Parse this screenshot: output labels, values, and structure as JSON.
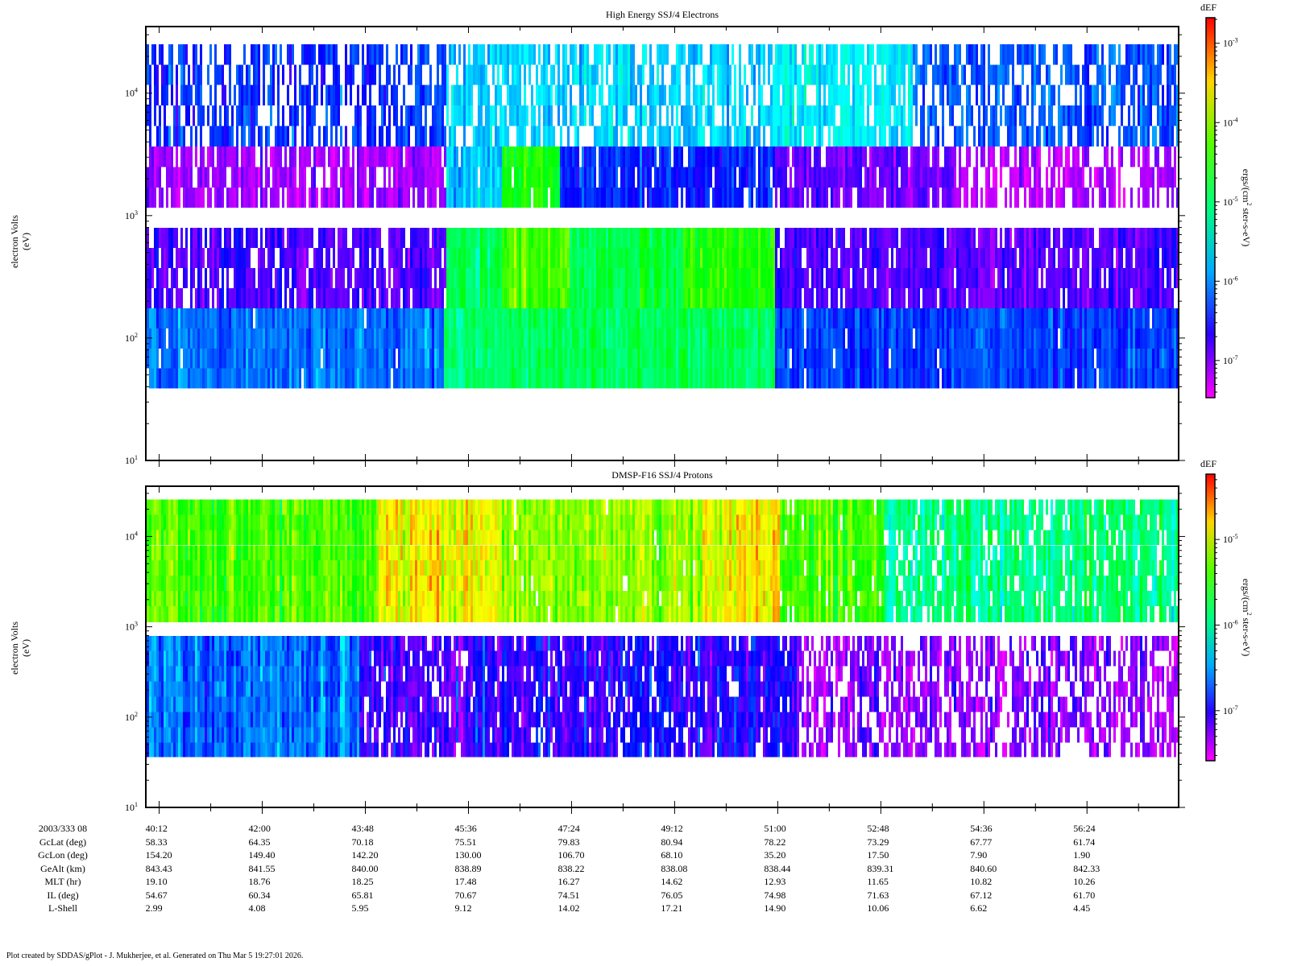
{
  "chart_data": [
    {
      "type": "heatmap",
      "title": "High Energy SSJ/4 Electrons",
      "ylabel": [
        "electron Volts",
        "(eV)"
      ],
      "yscale": "log",
      "ylim": [
        10,
        35000
      ],
      "ytick_labels": [
        {
          "base": "10",
          "exp": "1",
          "value": 10
        },
        {
          "base": "10",
          "exp": "2",
          "value": 100
        },
        {
          "base": "10",
          "exp": "3",
          "value": 1000
        },
        {
          "base": "10",
          "exp": "4",
          "value": 10000
        }
      ],
      "xlim_seconds_of_hour": [
        2398,
        3480
      ],
      "colorbar": {
        "title": "dEF",
        "label_main": "ergs/(cm",
        "label_sup": "2",
        "label_rest": " ster-s-eV)",
        "range": [
          3.4e-08,
          0.0021
        ],
        "scale": "log",
        "tick_labels": [
          {
            "base": "10",
            "exp": "-3",
            "value": -3
          },
          {
            "base": "10",
            "exp": "-4",
            "value": -4
          },
          {
            "base": "10",
            "exp": "-5",
            "value": -5
          },
          {
            "base": "10",
            "exp": "-6",
            "value": -6
          },
          {
            "base": "10",
            "exp": "-7",
            "value": -7
          }
        ]
      },
      "energy_bin_edges_eV": [
        [
          25100,
          17100,
          11640,
          7930,
          5400,
          3670,
          2500,
          1700,
          1160
        ],
        [
          794,
          545,
          373,
          256,
          175,
          120,
          82,
          56.5,
          38.7
        ]
      ],
      "channel_groups": [
        {
          "name": "A",
          "detector": 0,
          "bins": [
            0,
            1,
            2,
            3,
            4
          ],
          "segments_log10_dEF": [
            [
              2398,
              2712,
              -6.3,
              0.4
            ],
            [
              2712,
              3056,
              -5.7,
              0.3
            ],
            [
              3056,
              3200,
              -5.6,
              0.15
            ],
            [
              3200,
              3480,
              -6.2,
              0.35
            ]
          ]
        },
        {
          "name": "B",
          "detector": 0,
          "bins": [
            5,
            6,
            7
          ],
          "segments_log10_dEF": [
            [
              2398,
              2712,
              -7.1,
              0.2
            ],
            [
              2712,
              2770,
              -5.8,
              0.05
            ],
            [
              2770,
              2830,
              -4.6,
              0.05
            ],
            [
              2830,
              3056,
              -6.4,
              0.1
            ],
            [
              3056,
              3240,
              -6.9,
              0.1
            ],
            [
              3240,
              3480,
              -7.2,
              0.3
            ]
          ]
        },
        {
          "name": "C",
          "detector": 1,
          "bins": [
            0,
            1,
            2,
            3
          ],
          "segments_log10_dEF": [
            [
              2398,
              2712,
              -6.8,
              0.15
            ],
            [
              2712,
              2770,
              -4.9,
              0
            ],
            [
              2770,
              2840,
              -4.3,
              0
            ],
            [
              2840,
              2960,
              -4.8,
              0
            ],
            [
              2960,
              3056,
              -4.5,
              0
            ],
            [
              3056,
              3480,
              -6.8,
              0.1
            ]
          ]
        },
        {
          "name": "D",
          "detector": 1,
          "bins": [
            4,
            5,
            6,
            7
          ],
          "segments_log10_dEF": [
            [
              2398,
              2710,
              -6.1,
              0.02
            ],
            [
              2710,
              2770,
              -5.0,
              0
            ],
            [
              2770,
              3056,
              -4.9,
              0
            ],
            [
              3056,
              3480,
              -6.3,
              0.02
            ]
          ]
        }
      ]
    },
    {
      "type": "heatmap",
      "title": "DMSP-F16 SSJ/4 Protons",
      "ylabel": [
        "electron Volts",
        "(eV)"
      ],
      "yscale": "log",
      "ylim": [
        10,
        36000
      ],
      "ytick_labels": [
        {
          "base": "10",
          "exp": "1",
          "value": 10
        },
        {
          "base": "10",
          "exp": "2",
          "value": 100
        },
        {
          "base": "10",
          "exp": "3",
          "value": 1000
        },
        {
          "base": "10",
          "exp": "4",
          "value": 10000
        }
      ],
      "xlim_seconds_of_hour": [
        2398,
        3480
      ],
      "colorbar": {
        "title": "dEF",
        "label_main": "ergs/(cm",
        "label_sup": "2",
        "label_rest": " ster-s-eV)",
        "range": [
          2.6e-08,
          5.8e-05
        ],
        "scale": "log",
        "tick_labels": [
          {
            "base": "10",
            "exp": "-5",
            "value": -5
          },
          {
            "base": "10",
            "exp": "-6",
            "value": -6
          },
          {
            "base": "10",
            "exp": "-7",
            "value": -7
          }
        ]
      },
      "energy_bin_edges_eV": [
        [
          25700,
          17400,
          11800,
          8000,
          5450,
          3700,
          2500,
          1700,
          1120
        ],
        [
          794,
          540,
          366,
          248,
          168,
          114,
          77,
          52,
          36
        ]
      ],
      "channel_groups": [
        {
          "name": "A",
          "detector": 0,
          "bins": [
            0,
            1,
            2,
            3,
            4,
            5,
            6,
            7
          ],
          "segments_log10_dEF": [
            [
              2398,
              2640,
              -5.4,
              0
            ],
            [
              2640,
              2770,
              -4.9,
              0
            ],
            [
              2770,
              2980,
              -5.2,
              0.02
            ],
            [
              2980,
              3060,
              -4.9,
              0
            ],
            [
              3060,
              3170,
              -5.4,
              0.05
            ],
            [
              3170,
              3480,
              -5.9,
              0.15
            ]
          ]
        },
        {
          "name": "B",
          "detector": 1,
          "bins": [
            0,
            1,
            2,
            3,
            4,
            5,
            6,
            7
          ],
          "segments_log10_dEF": [
            [
              2398,
              2620,
              -6.6,
              0
            ],
            [
              2620,
              2730,
              -7.1,
              0.15
            ],
            [
              2730,
              3080,
              -7.0,
              0.1
            ],
            [
              3080,
              3480,
              -7.3,
              0.35
            ]
          ]
        }
      ]
    }
  ],
  "time_ticks_seconds_of_hour": [
    2412,
    2520,
    2628,
    2736,
    2844,
    2952,
    3060,
    3168,
    3276,
    3384
  ],
  "ephemeris": {
    "rows": [
      {
        "label": "2003/333 08",
        "values": [
          "40:12",
          "42:00",
          "43:48",
          "45:36",
          "47:24",
          "49:12",
          "51:00",
          "52:48",
          "54:36",
          "56:24"
        ]
      },
      {
        "label": "GcLat (deg)",
        "values": [
          "58.33",
          "64.35",
          "70.18",
          "75.51",
          "79.83",
          "80.94",
          "78.22",
          "73.29",
          "67.77",
          "61.74"
        ]
      },
      {
        "label": "GcLon (deg)",
        "values": [
          "154.20",
          "149.40",
          "142.20",
          "130.00",
          "106.70",
          "68.10",
          "35.20",
          "17.50",
          "7.90",
          "1.90"
        ]
      },
      {
        "label": "GeAlt (km)",
        "values": [
          "843.43",
          "841.55",
          "840.00",
          "838.89",
          "838.22",
          "838.08",
          "838.44",
          "839.31",
          "840.60",
          "842.33"
        ]
      },
      {
        "label": "MLT (hr)",
        "values": [
          "19.10",
          "18.76",
          "18.25",
          "17.48",
          "16.27",
          "14.62",
          "12.93",
          "11.65",
          "10.82",
          "10.26"
        ]
      },
      {
        "label": "IL (deg)",
        "values": [
          "54.67",
          "60.34",
          "65.81",
          "70.67",
          "74.51",
          "76.05",
          "74.98",
          "71.63",
          "67.12",
          "61.70"
        ]
      },
      {
        "label": "L-Shell",
        "values": [
          "2.99",
          "4.08",
          "5.95",
          "9.12",
          "14.02",
          "17.21",
          "14.90",
          "10.06",
          "6.62",
          "4.45"
        ]
      }
    ]
  },
  "footer": "Plot created by SDDAS/gPlot - J. Mukherjee, et al.  Generated on Thu Mar 5 19:27:01 2026."
}
